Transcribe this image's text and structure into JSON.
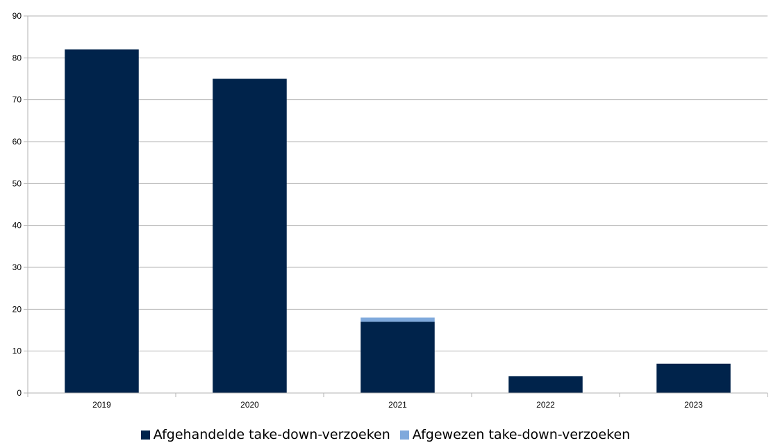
{
  "chart_data": {
    "type": "bar",
    "stacked": true,
    "categories": [
      "2019",
      "2020",
      "2021",
      "2022",
      "2023"
    ],
    "series": [
      {
        "name": "Afgehandelde take-down-verzoeken",
        "values": [
          82,
          75,
          17,
          4,
          7
        ],
        "color": "#00234b"
      },
      {
        "name": "Afgewezen take-down-verzoeken",
        "values": [
          0,
          0,
          1,
          0,
          0
        ],
        "color": "#7fa9dc"
      }
    ],
    "ylim": [
      0,
      90
    ],
    "yticks": [
      0,
      10,
      20,
      30,
      40,
      50,
      60,
      70,
      80,
      90
    ],
    "grid": true,
    "legend_position": "bottom"
  }
}
